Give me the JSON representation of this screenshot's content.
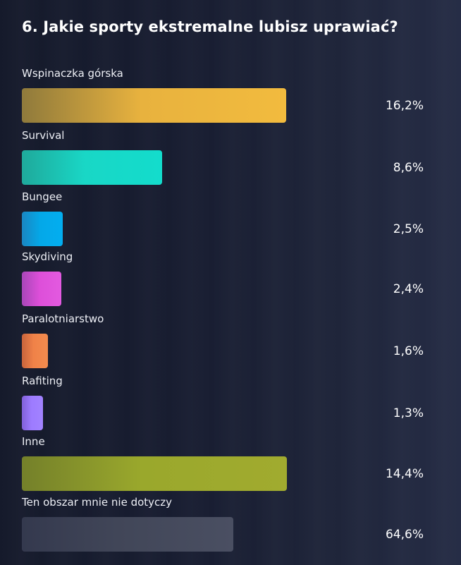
{
  "title": "6. Jakie sporty ekstremalne lubisz uprawiać?",
  "chart_data": {
    "type": "bar",
    "orientation": "horizontal",
    "title": "6. Jakie sporty ekstremalne lubisz uprawiać?",
    "categories": [
      "Wspinaczka górska",
      "Survival",
      "Bungee",
      "Skydiving",
      "Paralotniarstwo",
      "Rafiting",
      "Inne",
      "Ten obszar mnie nie dotyczy"
    ],
    "values": [
      16.2,
      8.6,
      2.5,
      2.4,
      1.6,
      1.3,
      14.4,
      64.6
    ],
    "value_labels": [
      "16,2%",
      "8,6%",
      "2,5%",
      "2,4%",
      "1,6%",
      "1,3%",
      "14,4%",
      "64,6%"
    ],
    "unit": "%",
    "bar_colors": [
      [
        "#8f7a3c",
        "#e8b23e",
        "#f2bb3e"
      ],
      [
        "#1fa99b",
        "#19d7c6",
        "#13dccc"
      ],
      [
        "#1a86c2",
        "#04a8e8",
        "#03aef0"
      ],
      [
        "#a846b8",
        "#dd4fd9",
        "#e35ae0"
      ],
      [
        "#c8643c",
        "#f08248",
        "#f28b4e"
      ],
      [
        "#8060d8",
        "#9d7bff",
        "#a283ff"
      ],
      [
        "#74802a",
        "#9aa82c",
        "#a1ab2f"
      ],
      [
        "#34394e",
        "#414658",
        "#4a4f62"
      ]
    ],
    "grid": false,
    "legend": "none"
  }
}
